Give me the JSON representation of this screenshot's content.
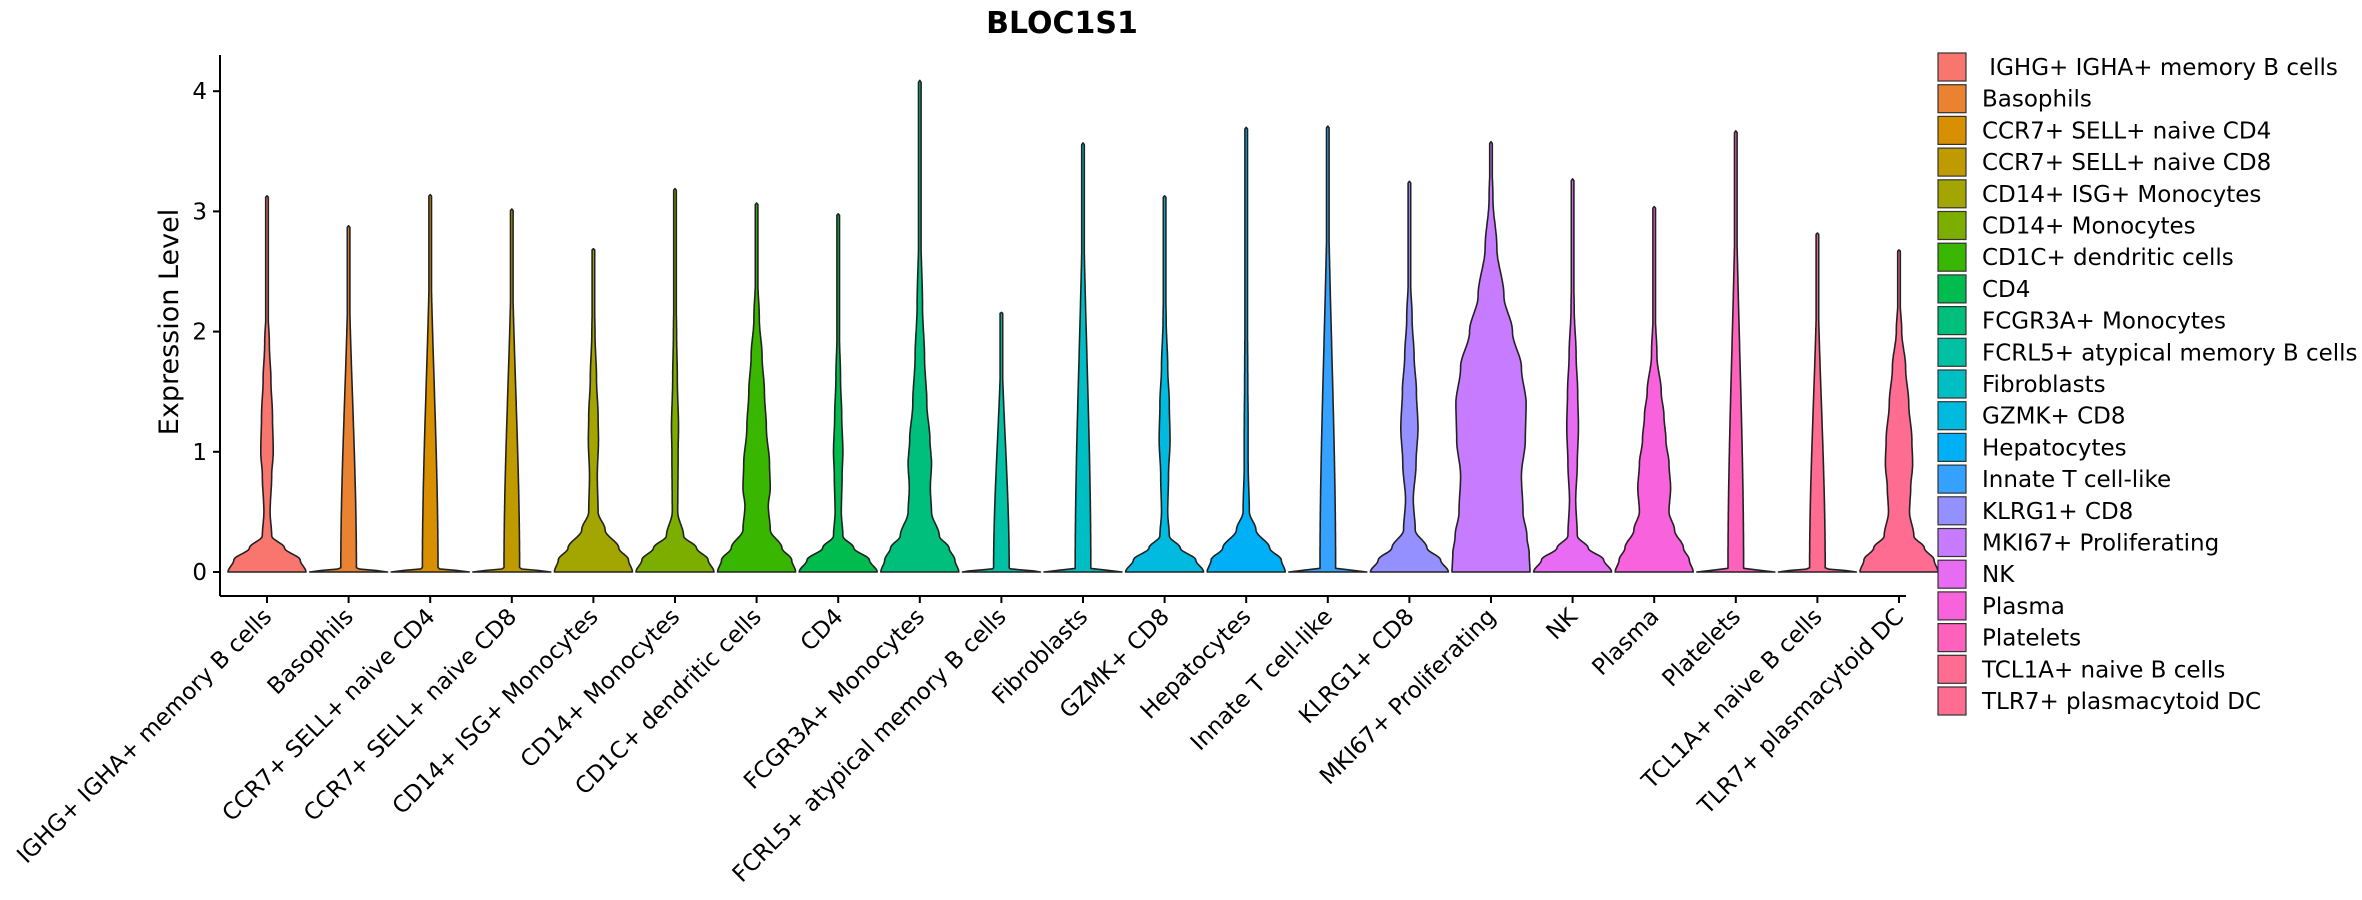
{
  "chart_data": {
    "type": "violin",
    "title": "BLOC1S1",
    "xlabel": "",
    "ylabel": "Expression Level",
    "ylim": [
      -0.2,
      4.3
    ],
    "yticks": [
      "0",
      "1",
      "2",
      "3",
      "4"
    ],
    "grid": false,
    "legend_position": "right",
    "categories": [
      {
        "label": "IGHG+ IGHA+ memory B cells",
        "legend_label": " IGHG+ IGHA+ memory B cells",
        "color": "#F8766D",
        "max": 3.13,
        "profile": [
          [
            0,
            1.0
          ],
          [
            0.1,
            0.85
          ],
          [
            0.2,
            0.45
          ],
          [
            0.3,
            0.12
          ],
          [
            0.5,
            0.08
          ],
          [
            0.8,
            0.12
          ],
          [
            1.0,
            0.16
          ],
          [
            1.3,
            0.14
          ],
          [
            1.6,
            0.1
          ],
          [
            1.9,
            0.06
          ],
          [
            2.2,
            0.02
          ],
          [
            3.13,
            0.0
          ]
        ]
      },
      {
        "label": "Basophils",
        "legend_label": "Basophils",
        "color": "#EA8331",
        "max": 2.88,
        "profile": [
          [
            0,
            1.0
          ],
          [
            0.03,
            0.2
          ],
          [
            2.88,
            0.0
          ]
        ]
      },
      {
        "label": "CCR7+ SELL+ naive CD4",
        "legend_label": "CCR7+ SELL+ naive CD4",
        "color": "#D89000",
        "max": 3.14,
        "profile": [
          [
            0,
            1.0
          ],
          [
            0.03,
            0.2
          ],
          [
            3.14,
            0.0
          ]
        ]
      },
      {
        "label": "CCR7+ SELL+ naive CD8",
        "legend_label": "CCR7+ SELL+ naive CD8",
        "color": "#C09B00",
        "max": 3.02,
        "profile": [
          [
            0,
            1.0
          ],
          [
            0.03,
            0.2
          ],
          [
            3.02,
            0.0
          ]
        ]
      },
      {
        "label": "CD14+ ISG+ Monocytes",
        "legend_label": "CD14+ ISG+ Monocytes",
        "color": "#A3A500",
        "max": 2.69,
        "profile": [
          [
            0,
            1.0
          ],
          [
            0.1,
            0.9
          ],
          [
            0.2,
            0.65
          ],
          [
            0.35,
            0.3
          ],
          [
            0.5,
            0.12
          ],
          [
            0.8,
            0.1
          ],
          [
            1.1,
            0.13
          ],
          [
            1.3,
            0.12
          ],
          [
            1.6,
            0.08
          ],
          [
            2.0,
            0.04
          ],
          [
            2.4,
            0.01
          ],
          [
            2.69,
            0.0
          ]
        ]
      },
      {
        "label": "CD14+ Monocytes",
        "legend_label": "CD14+ Monocytes",
        "color": "#7CAE00",
        "max": 3.19,
        "profile": [
          [
            0,
            1.0
          ],
          [
            0.1,
            0.85
          ],
          [
            0.2,
            0.55
          ],
          [
            0.3,
            0.22
          ],
          [
            0.5,
            0.07
          ],
          [
            1.0,
            0.08
          ],
          [
            1.2,
            0.09
          ],
          [
            1.6,
            0.06
          ],
          [
            2.0,
            0.04
          ],
          [
            2.5,
            0.01
          ],
          [
            3.19,
            0.0
          ]
        ]
      },
      {
        "label": "CD1C+ dendritic cells",
        "legend_label": "CD1C+ dendritic cells",
        "color": "#39B600",
        "max": 3.07,
        "profile": [
          [
            0,
            1.0
          ],
          [
            0.1,
            0.9
          ],
          [
            0.2,
            0.65
          ],
          [
            0.35,
            0.35
          ],
          [
            0.55,
            0.3
          ],
          [
            0.7,
            0.35
          ],
          [
            0.9,
            0.33
          ],
          [
            1.2,
            0.25
          ],
          [
            1.5,
            0.2
          ],
          [
            1.8,
            0.14
          ],
          [
            2.1,
            0.07
          ],
          [
            2.5,
            0.02
          ],
          [
            3.07,
            0.0
          ]
        ]
      },
      {
        "label": "CD4",
        "legend_label": "CD4",
        "color": "#00BB4E",
        "max": 2.98,
        "profile": [
          [
            0,
            1.0
          ],
          [
            0.1,
            0.8
          ],
          [
            0.2,
            0.4
          ],
          [
            0.3,
            0.12
          ],
          [
            0.5,
            0.08
          ],
          [
            0.8,
            0.1
          ],
          [
            1.0,
            0.12
          ],
          [
            1.3,
            0.09
          ],
          [
            1.6,
            0.06
          ],
          [
            2.0,
            0.03
          ],
          [
            2.4,
            0.01
          ],
          [
            2.98,
            0.0
          ]
        ]
      },
      {
        "label": "FCGR3A+ Monocytes",
        "legend_label": "FCGR3A+ Monocytes",
        "color": "#00BF7D",
        "max": 4.09,
        "profile": [
          [
            0,
            1.0
          ],
          [
            0.1,
            0.9
          ],
          [
            0.2,
            0.75
          ],
          [
            0.3,
            0.5
          ],
          [
            0.5,
            0.3
          ],
          [
            0.7,
            0.27
          ],
          [
            0.9,
            0.3
          ],
          [
            1.1,
            0.26
          ],
          [
            1.4,
            0.18
          ],
          [
            1.8,
            0.12
          ],
          [
            2.2,
            0.07
          ],
          [
            2.8,
            0.03
          ],
          [
            3.4,
            0.01
          ],
          [
            4.09,
            0.0
          ]
        ]
      },
      {
        "label": "FCRL5+ atypical memory B cells",
        "legend_label": "FCRL5+ atypical memory B cells",
        "color": "#00C1A3",
        "max": 2.16,
        "profile": [
          [
            0,
            1.0
          ],
          [
            0.03,
            0.2
          ],
          [
            2.16,
            0.0
          ]
        ]
      },
      {
        "label": "Fibroblasts",
        "legend_label": "Fibroblasts",
        "color": "#00BFC4",
        "max": 3.57,
        "profile": [
          [
            0,
            1.0
          ],
          [
            0.03,
            0.2
          ],
          [
            3.57,
            0.0
          ]
        ]
      },
      {
        "label": "GZMK+ CD8",
        "legend_label": "GZMK+ CD8",
        "color": "#00BAE0",
        "max": 3.13,
        "profile": [
          [
            0,
            1.0
          ],
          [
            0.1,
            0.8
          ],
          [
            0.2,
            0.4
          ],
          [
            0.3,
            0.12
          ],
          [
            0.5,
            0.08
          ],
          [
            0.8,
            0.1
          ],
          [
            1.1,
            0.14
          ],
          [
            1.4,
            0.12
          ],
          [
            1.7,
            0.08
          ],
          [
            2.1,
            0.04
          ],
          [
            2.5,
            0.01
          ],
          [
            3.13,
            0.0
          ]
        ]
      },
      {
        "label": "Hepatocytes",
        "legend_label": "Hepatocytes",
        "color": "#00B0F6",
        "max": 3.7,
        "profile": [
          [
            0,
            1.0
          ],
          [
            0.1,
            0.9
          ],
          [
            0.2,
            0.6
          ],
          [
            0.35,
            0.25
          ],
          [
            0.5,
            0.08
          ],
          [
            0.9,
            0.05
          ],
          [
            1.2,
            0.05
          ],
          [
            1.6,
            0.04
          ],
          [
            2.2,
            0.03
          ],
          [
            2.8,
            0.02
          ],
          [
            3.2,
            0.01
          ],
          [
            3.7,
            0.0
          ]
        ]
      },
      {
        "label": "Innate T cell-like",
        "legend_label": "Innate T cell-like",
        "color": "#35A2FF",
        "max": 3.71,
        "profile": [
          [
            0,
            1.0
          ],
          [
            0.03,
            0.2
          ],
          [
            3.71,
            0.0
          ]
        ]
      },
      {
        "label": "KLRG1+ CD8",
        "legend_label": "KLRG1+ CD8",
        "color": "#9590FF",
        "max": 3.25,
        "profile": [
          [
            0,
            1.0
          ],
          [
            0.1,
            0.8
          ],
          [
            0.2,
            0.45
          ],
          [
            0.35,
            0.15
          ],
          [
            0.6,
            0.1
          ],
          [
            0.9,
            0.17
          ],
          [
            1.2,
            0.22
          ],
          [
            1.5,
            0.18
          ],
          [
            1.8,
            0.12
          ],
          [
            2.1,
            0.07
          ],
          [
            2.5,
            0.02
          ],
          [
            3.25,
            0.0
          ]
        ]
      },
      {
        "label": "MKI67+ Proliferating",
        "legend_label": "MKI67+ Proliferating",
        "color": "#C77CFF",
        "max": 3.58,
        "profile": [
          [
            0,
            1.0
          ],
          [
            0.15,
            0.98
          ],
          [
            0.3,
            0.92
          ],
          [
            0.5,
            0.82
          ],
          [
            0.8,
            0.78
          ],
          [
            1.1,
            0.88
          ],
          [
            1.4,
            0.9
          ],
          [
            1.7,
            0.78
          ],
          [
            2.0,
            0.55
          ],
          [
            2.3,
            0.33
          ],
          [
            2.7,
            0.15
          ],
          [
            3.1,
            0.05
          ],
          [
            3.58,
            0.0
          ]
        ]
      },
      {
        "label": "NK",
        "legend_label": "NK",
        "color": "#E76BF3",
        "max": 3.27,
        "profile": [
          [
            0,
            1.0
          ],
          [
            0.1,
            0.8
          ],
          [
            0.2,
            0.4
          ],
          [
            0.3,
            0.12
          ],
          [
            0.6,
            0.08
          ],
          [
            0.9,
            0.12
          ],
          [
            1.2,
            0.15
          ],
          [
            1.5,
            0.13
          ],
          [
            1.8,
            0.09
          ],
          [
            2.2,
            0.04
          ],
          [
            2.6,
            0.01
          ],
          [
            3.27,
            0.0
          ]
        ]
      },
      {
        "label": "Plasma",
        "legend_label": "Plasma",
        "color": "#F962DD",
        "max": 3.04,
        "profile": [
          [
            0,
            1.0
          ],
          [
            0.1,
            0.9
          ],
          [
            0.2,
            0.75
          ],
          [
            0.35,
            0.52
          ],
          [
            0.5,
            0.38
          ],
          [
            0.7,
            0.42
          ],
          [
            0.9,
            0.38
          ],
          [
            1.1,
            0.3
          ],
          [
            1.3,
            0.25
          ],
          [
            1.5,
            0.18
          ],
          [
            1.8,
            0.07
          ],
          [
            2.2,
            0.02
          ],
          [
            3.04,
            0.0
          ]
        ]
      },
      {
        "label": "Platelets",
        "legend_label": "Platelets",
        "color": "#FF62BC",
        "max": 3.67,
        "profile": [
          [
            0,
            1.0
          ],
          [
            0.03,
            0.2
          ],
          [
            3.67,
            0.0
          ]
        ]
      },
      {
        "label": "TCL1A+ naive B cells",
        "legend_label": "TCL1A+ naive B cells",
        "color": "#FF6C91",
        "max": 2.82,
        "profile": [
          [
            0,
            1.0
          ],
          [
            0.03,
            0.2
          ],
          [
            2.82,
            0.0
          ]
        ]
      },
      {
        "label": "TLR7+ plasmacytoid DC",
        "legend_label": "TLR7+ plasmacytoid DC",
        "color": "#FF6C91",
        "max": 2.68,
        "profile": [
          [
            0,
            1.0
          ],
          [
            0.1,
            0.9
          ],
          [
            0.2,
            0.65
          ],
          [
            0.3,
            0.38
          ],
          [
            0.5,
            0.27
          ],
          [
            0.7,
            0.3
          ],
          [
            0.9,
            0.35
          ],
          [
            1.1,
            0.33
          ],
          [
            1.4,
            0.25
          ],
          [
            1.7,
            0.17
          ],
          [
            2.0,
            0.07
          ],
          [
            2.3,
            0.02
          ],
          [
            2.68,
            0.0
          ]
        ]
      }
    ]
  }
}
